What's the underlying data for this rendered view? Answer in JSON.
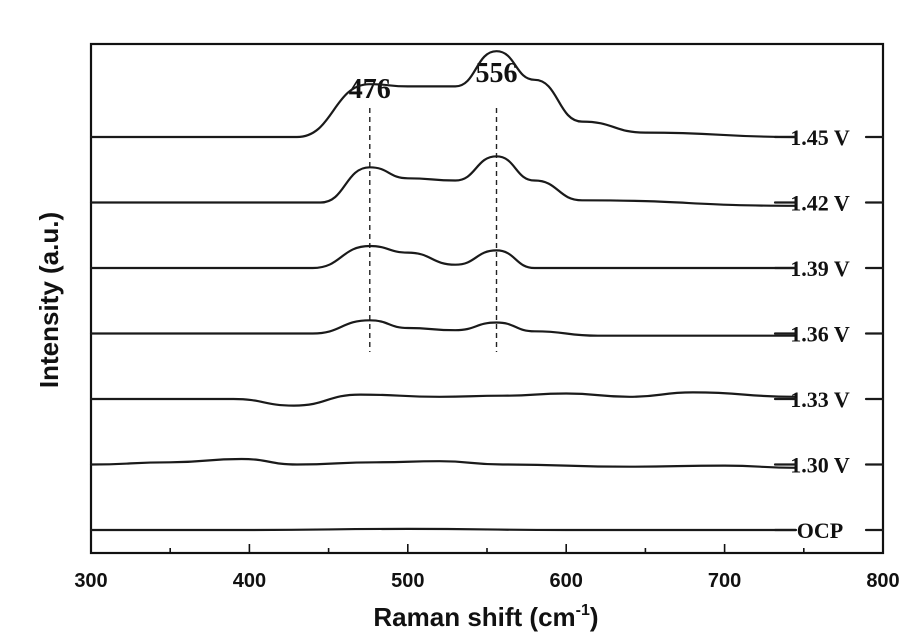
{
  "chart_data": {
    "type": "line",
    "xlabel": "Raman shift (cm",
    "xlabel_sup": "-1",
    "xlabel_close": ")",
    "ylabel": "Intensity (a.u.)",
    "xlim": [
      300,
      800
    ],
    "x_ticks": [
      "300",
      "400",
      "500",
      "600",
      "700",
      "800"
    ],
    "y_ticks_shown": false,
    "grid": false,
    "peaks": [
      {
        "label": "476",
        "x": 476
      },
      {
        "label": "556",
        "x": 556
      }
    ],
    "series": [
      {
        "name": "OCP",
        "offset": 0.0,
        "points": [
          [
            300,
            0.0
          ],
          [
            400,
            0.0
          ],
          [
            500,
            0.01
          ],
          [
            600,
            0.0
          ],
          [
            700,
            0.0
          ],
          [
            745,
            0.0
          ]
        ]
      },
      {
        "name": "1.30 V",
        "offset": 1.0,
        "points": [
          [
            300,
            0.0
          ],
          [
            350,
            0.02
          ],
          [
            395,
            0.05
          ],
          [
            430,
            0.0
          ],
          [
            480,
            0.02
          ],
          [
            520,
            0.03
          ],
          [
            560,
            0.0
          ],
          [
            640,
            -0.02
          ],
          [
            700,
            -0.01
          ],
          [
            745,
            -0.03
          ]
        ]
      },
      {
        "name": "1.33 V",
        "offset": 2.0,
        "points": [
          [
            300,
            0.0
          ],
          [
            390,
            0.0
          ],
          [
            428,
            -0.06
          ],
          [
            470,
            0.04
          ],
          [
            520,
            0.02
          ],
          [
            560,
            0.03
          ],
          [
            600,
            0.05
          ],
          [
            640,
            0.02
          ],
          [
            680,
            0.06
          ],
          [
            745,
            0.02
          ]
        ]
      },
      {
        "name": "1.36 V",
        "offset": 3.0,
        "points": [
          [
            300,
            0.0
          ],
          [
            440,
            0.0
          ],
          [
            476,
            0.12
          ],
          [
            500,
            0.05
          ],
          [
            530,
            0.03
          ],
          [
            556,
            0.1
          ],
          [
            580,
            0.02
          ],
          [
            620,
            -0.02
          ],
          [
            745,
            -0.02
          ]
        ]
      },
      {
        "name": "1.39 V",
        "offset": 4.0,
        "points": [
          [
            300,
            0.0
          ],
          [
            440,
            0.0
          ],
          [
            476,
            0.2
          ],
          [
            500,
            0.14
          ],
          [
            530,
            0.03
          ],
          [
            556,
            0.16
          ],
          [
            580,
            0.0
          ],
          [
            620,
            0.0
          ],
          [
            745,
            0.0
          ]
        ]
      },
      {
        "name": "1.42 V",
        "offset": 5.0,
        "points": [
          [
            300,
            0.0
          ],
          [
            445,
            0.0
          ],
          [
            476,
            0.32
          ],
          [
            500,
            0.22
          ],
          [
            530,
            0.2
          ],
          [
            556,
            0.42
          ],
          [
            580,
            0.2
          ],
          [
            610,
            0.02
          ],
          [
            745,
            -0.03
          ]
        ]
      },
      {
        "name": "1.45 V",
        "offset": 6.0,
        "points": [
          [
            300,
            0.0
          ],
          [
            430,
            0.0
          ],
          [
            476,
            0.48
          ],
          [
            500,
            0.46
          ],
          [
            530,
            0.46
          ],
          [
            556,
            0.78
          ],
          [
            580,
            0.52
          ],
          [
            610,
            0.14
          ],
          [
            650,
            0.04
          ],
          [
            745,
            0.0
          ]
        ]
      }
    ]
  }
}
